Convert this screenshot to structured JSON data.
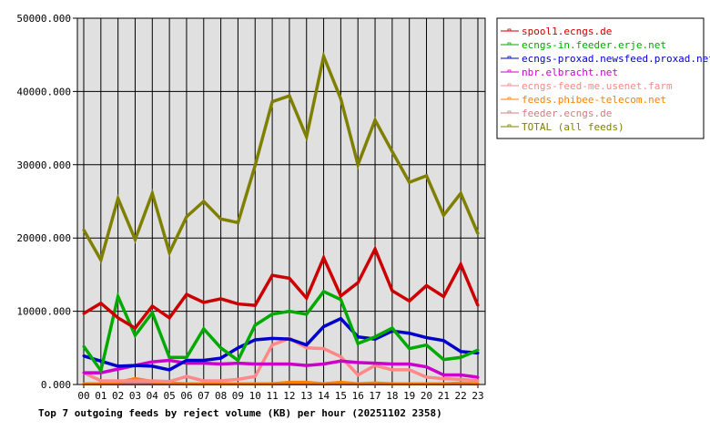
{
  "chart_data": {
    "type": "line",
    "title": "Top 7 outgoing feeds by reject volume (KB) per hour (20251102 2358)",
    "xlabel": "",
    "ylabel": "",
    "ylim": [
      0,
      50000
    ],
    "y_ticks": [
      "0.000",
      "10000.000",
      "20000.000",
      "30000.000",
      "40000.000",
      "50000.000"
    ],
    "y_tick_values": [
      0,
      10000,
      20000,
      30000,
      40000,
      50000
    ],
    "grid": true,
    "legend_position": "right",
    "categories": [
      "00",
      "01",
      "02",
      "03",
      "04",
      "05",
      "06",
      "07",
      "08",
      "09",
      "10",
      "11",
      "12",
      "13",
      "14",
      "15",
      "16",
      "17",
      "18",
      "19",
      "20",
      "21",
      "22",
      "23"
    ],
    "series": [
      {
        "name": "spool1.ecngs.de",
        "color": "#cc0000",
        "values": [
          9700,
          11100,
          9100,
          7700,
          10700,
          9100,
          12300,
          11200,
          11700,
          11000,
          10800,
          14900,
          14500,
          11800,
          17300,
          12100,
          13900,
          18500,
          12800,
          11400,
          13500,
          12000,
          16400,
          10800
        ]
      },
      {
        "name": "ecngs-in.feeder.erje.net",
        "color": "#00aa00",
        "values": [
          5200,
          1900,
          12000,
          6700,
          9800,
          3700,
          3700,
          7600,
          5000,
          3300,
          8100,
          9600,
          10000,
          9600,
          12700,
          11600,
          5600,
          6500,
          7700,
          4900,
          5400,
          3400,
          3700,
          4700
        ]
      },
      {
        "name": "ecngs-proxad.newsfeed.proxad.net",
        "color": "#0000cc",
        "values": [
          3900,
          3200,
          2500,
          2600,
          2500,
          2000,
          3300,
          3300,
          3600,
          5000,
          6100,
          6300,
          6200,
          5400,
          7900,
          9000,
          6500,
          6200,
          7300,
          7000,
          6400,
          6000,
          4500,
          4300
        ]
      },
      {
        "name": "nbr.elbracht.net",
        "color": "#cc00cc",
        "values": [
          1600,
          1600,
          2100,
          2600,
          3100,
          3300,
          2900,
          2900,
          2800,
          2900,
          2800,
          2800,
          2800,
          2600,
          2800,
          3200,
          3000,
          2900,
          2800,
          2800,
          2400,
          1300,
          1300,
          1000
        ]
      },
      {
        "name": "ecngs-feed-me.usenet.farm",
        "color": "#ff8888",
        "values": [
          1600,
          500,
          500,
          500,
          500,
          400,
          1100,
          500,
          500,
          700,
          1100,
          5400,
          6300,
          5000,
          4900,
          3800,
          1300,
          2600,
          2000,
          2000,
          1000,
          800,
          700,
          500
        ]
      },
      {
        "name": "feeds.phibee-telecom.net",
        "color": "#ff8000",
        "values": [
          100,
          100,
          300,
          800,
          400,
          200,
          100,
          100,
          100,
          100,
          100,
          100,
          300,
          300,
          100,
          300,
          100,
          200,
          100,
          100,
          100,
          100,
          200,
          100
        ]
      },
      {
        "name": "feeder.ecngs.de",
        "color": "#cc8080",
        "values": [
          100,
          100,
          100,
          100,
          100,
          100,
          100,
          100,
          100,
          100,
          100,
          100,
          100,
          100,
          100,
          100,
          100,
          100,
          100,
          100,
          100,
          100,
          100,
          100
        ]
      },
      {
        "name": "TOTAL (all feeds)",
        "color": "#808000",
        "values": [
          21100,
          17000,
          25400,
          19800,
          26100,
          18000,
          22900,
          25000,
          22600,
          22100,
          29900,
          38600,
          39400,
          33800,
          44800,
          39000,
          30000,
          36100,
          31800,
          27600,
          28500,
          23100,
          26100,
          20600
        ]
      }
    ]
  }
}
